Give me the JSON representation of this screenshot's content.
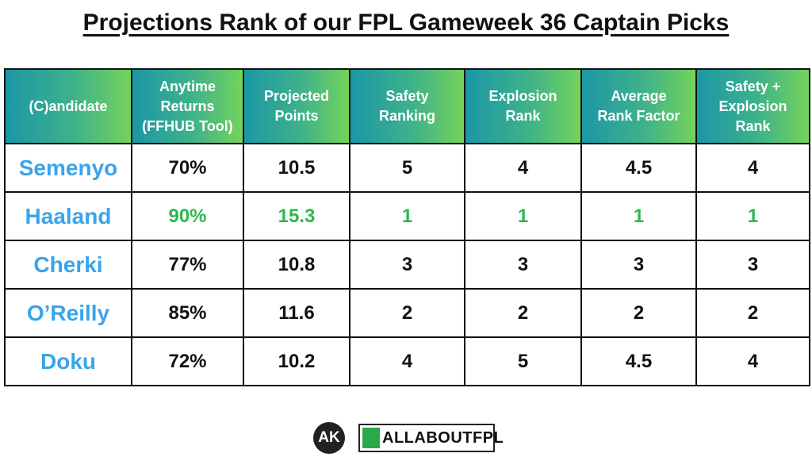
{
  "header": {
    "title": "Projections Rank of our FPL Gameweek 36 Captain Picks"
  },
  "table": {
    "columns": [
      [
        "(C)andidate"
      ],
      [
        "Anytime",
        "Returns",
        "(FFHUB Tool)"
      ],
      [
        "Projected",
        "Points"
      ],
      [
        "Safety",
        "Ranking"
      ],
      [
        "Explosion",
        "Rank"
      ],
      [
        "Average",
        "Rank Factor"
      ],
      [
        "Safety +",
        "Explosion",
        "Rank"
      ]
    ],
    "rows": [
      {
        "cells": [
          "Semenyo",
          "70%",
          "10.5",
          "5",
          "4",
          "4.5",
          "4"
        ],
        "highlight": false
      },
      {
        "cells": [
          "Haaland",
          "90%",
          "15.3",
          "1",
          "1",
          "1",
          "1"
        ],
        "highlight": true
      },
      {
        "cells": [
          "Cherki",
          "77%",
          "10.8",
          "3",
          "3",
          "3",
          "3"
        ],
        "highlight": false
      },
      {
        "cells": [
          "O’Reilly",
          "85%",
          "11.6",
          "2",
          "2",
          "2",
          "2"
        ],
        "highlight": false
      },
      {
        "cells": [
          "Doku",
          "72%",
          "10.2",
          "4",
          "5",
          "4.5",
          "4"
        ],
        "highlight": false
      }
    ]
  },
  "footer": {
    "badge": "AK",
    "brand": "ALLABOUTFPL"
  }
}
